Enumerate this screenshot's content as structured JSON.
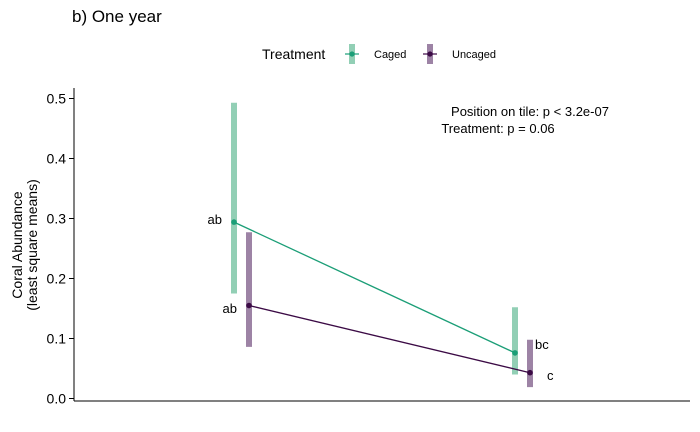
{
  "chart_data": {
    "type": "line",
    "title": "b) One year",
    "ylabel_lines": [
      "Coral Abundance",
      "(least square means)"
    ],
    "xlabel": "",
    "ylim": [
      0,
      0.5
    ],
    "yticks": [
      0.0,
      0.1,
      0.2,
      0.3,
      0.4,
      0.5
    ],
    "ytick_labels": [
      "0.0",
      "0.1",
      "0.2",
      "0.3",
      "0.4",
      "0.5"
    ],
    "legend": {
      "title": "Treatment",
      "position": "top-center",
      "entries": [
        "Caged",
        "Uncaged"
      ]
    },
    "annotations": {
      "stats": [
        "Position on tile: p < 3.2e-07",
        "Treatment: p = 0.06"
      ]
    },
    "series": [
      {
        "name": "Caged",
        "color": "#1b9e77",
        "bar_color": "#92cfb5",
        "values": [
          0.294,
          0.076
        ],
        "lower": [
          0.175,
          0.04
        ],
        "upper": [
          0.493,
          0.152
        ],
        "letters": [
          "ab",
          ""
        ]
      },
      {
        "name": "Uncaged",
        "color": "#3b0a45",
        "bar_color": "#9d83a5",
        "values": [
          0.155,
          0.043
        ],
        "lower": [
          0.086,
          0.019
        ],
        "upper": [
          0.277,
          0.098
        ],
        "letters": [
          "ab",
          "c"
        ]
      }
    ],
    "extra_letters": [
      "bc"
    ]
  }
}
